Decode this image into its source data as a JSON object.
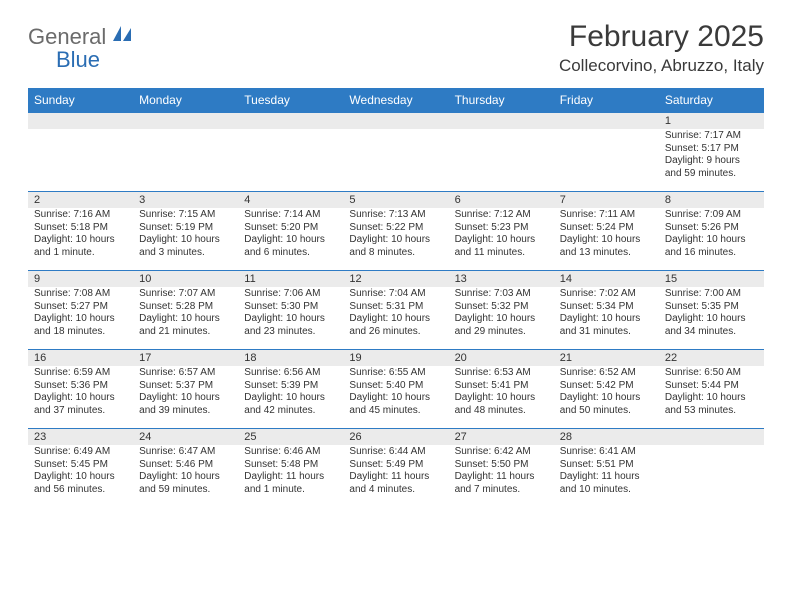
{
  "logo": {
    "word1": "General",
    "word2": "Blue"
  },
  "header": {
    "month_title": "February 2025",
    "location": "Collecorvino, Abruzzo, Italy"
  },
  "day_names": [
    "Sunday",
    "Monday",
    "Tuesday",
    "Wednesday",
    "Thursday",
    "Friday",
    "Saturday"
  ],
  "colors": {
    "header_bar": "#2e7bc4",
    "day_number_bg": "#ebebeb",
    "row_divider": "#2e7bc4",
    "text": "#333333",
    "title_text": "#3a3a3a",
    "logo_gray": "#6b6b6b",
    "logo_blue": "#2a6db3"
  },
  "weeks": [
    [
      null,
      null,
      null,
      null,
      null,
      null,
      {
        "n": "1",
        "sunrise": "Sunrise: 7:17 AM",
        "sunset": "Sunset: 5:17 PM",
        "daylight": "Daylight: 9 hours and 59 minutes."
      }
    ],
    [
      {
        "n": "2",
        "sunrise": "Sunrise: 7:16 AM",
        "sunset": "Sunset: 5:18 PM",
        "daylight": "Daylight: 10 hours and 1 minute."
      },
      {
        "n": "3",
        "sunrise": "Sunrise: 7:15 AM",
        "sunset": "Sunset: 5:19 PM",
        "daylight": "Daylight: 10 hours and 3 minutes."
      },
      {
        "n": "4",
        "sunrise": "Sunrise: 7:14 AM",
        "sunset": "Sunset: 5:20 PM",
        "daylight": "Daylight: 10 hours and 6 minutes."
      },
      {
        "n": "5",
        "sunrise": "Sunrise: 7:13 AM",
        "sunset": "Sunset: 5:22 PM",
        "daylight": "Daylight: 10 hours and 8 minutes."
      },
      {
        "n": "6",
        "sunrise": "Sunrise: 7:12 AM",
        "sunset": "Sunset: 5:23 PM",
        "daylight": "Daylight: 10 hours and 11 minutes."
      },
      {
        "n": "7",
        "sunrise": "Sunrise: 7:11 AM",
        "sunset": "Sunset: 5:24 PM",
        "daylight": "Daylight: 10 hours and 13 minutes."
      },
      {
        "n": "8",
        "sunrise": "Sunrise: 7:09 AM",
        "sunset": "Sunset: 5:26 PM",
        "daylight": "Daylight: 10 hours and 16 minutes."
      }
    ],
    [
      {
        "n": "9",
        "sunrise": "Sunrise: 7:08 AM",
        "sunset": "Sunset: 5:27 PM",
        "daylight": "Daylight: 10 hours and 18 minutes."
      },
      {
        "n": "10",
        "sunrise": "Sunrise: 7:07 AM",
        "sunset": "Sunset: 5:28 PM",
        "daylight": "Daylight: 10 hours and 21 minutes."
      },
      {
        "n": "11",
        "sunrise": "Sunrise: 7:06 AM",
        "sunset": "Sunset: 5:30 PM",
        "daylight": "Daylight: 10 hours and 23 minutes."
      },
      {
        "n": "12",
        "sunrise": "Sunrise: 7:04 AM",
        "sunset": "Sunset: 5:31 PM",
        "daylight": "Daylight: 10 hours and 26 minutes."
      },
      {
        "n": "13",
        "sunrise": "Sunrise: 7:03 AM",
        "sunset": "Sunset: 5:32 PM",
        "daylight": "Daylight: 10 hours and 29 minutes."
      },
      {
        "n": "14",
        "sunrise": "Sunrise: 7:02 AM",
        "sunset": "Sunset: 5:34 PM",
        "daylight": "Daylight: 10 hours and 31 minutes."
      },
      {
        "n": "15",
        "sunrise": "Sunrise: 7:00 AM",
        "sunset": "Sunset: 5:35 PM",
        "daylight": "Daylight: 10 hours and 34 minutes."
      }
    ],
    [
      {
        "n": "16",
        "sunrise": "Sunrise: 6:59 AM",
        "sunset": "Sunset: 5:36 PM",
        "daylight": "Daylight: 10 hours and 37 minutes."
      },
      {
        "n": "17",
        "sunrise": "Sunrise: 6:57 AM",
        "sunset": "Sunset: 5:37 PM",
        "daylight": "Daylight: 10 hours and 39 minutes."
      },
      {
        "n": "18",
        "sunrise": "Sunrise: 6:56 AM",
        "sunset": "Sunset: 5:39 PM",
        "daylight": "Daylight: 10 hours and 42 minutes."
      },
      {
        "n": "19",
        "sunrise": "Sunrise: 6:55 AM",
        "sunset": "Sunset: 5:40 PM",
        "daylight": "Daylight: 10 hours and 45 minutes."
      },
      {
        "n": "20",
        "sunrise": "Sunrise: 6:53 AM",
        "sunset": "Sunset: 5:41 PM",
        "daylight": "Daylight: 10 hours and 48 minutes."
      },
      {
        "n": "21",
        "sunrise": "Sunrise: 6:52 AM",
        "sunset": "Sunset: 5:42 PM",
        "daylight": "Daylight: 10 hours and 50 minutes."
      },
      {
        "n": "22",
        "sunrise": "Sunrise: 6:50 AM",
        "sunset": "Sunset: 5:44 PM",
        "daylight": "Daylight: 10 hours and 53 minutes."
      }
    ],
    [
      {
        "n": "23",
        "sunrise": "Sunrise: 6:49 AM",
        "sunset": "Sunset: 5:45 PM",
        "daylight": "Daylight: 10 hours and 56 minutes."
      },
      {
        "n": "24",
        "sunrise": "Sunrise: 6:47 AM",
        "sunset": "Sunset: 5:46 PM",
        "daylight": "Daylight: 10 hours and 59 minutes."
      },
      {
        "n": "25",
        "sunrise": "Sunrise: 6:46 AM",
        "sunset": "Sunset: 5:48 PM",
        "daylight": "Daylight: 11 hours and 1 minute."
      },
      {
        "n": "26",
        "sunrise": "Sunrise: 6:44 AM",
        "sunset": "Sunset: 5:49 PM",
        "daylight": "Daylight: 11 hours and 4 minutes."
      },
      {
        "n": "27",
        "sunrise": "Sunrise: 6:42 AM",
        "sunset": "Sunset: 5:50 PM",
        "daylight": "Daylight: 11 hours and 7 minutes."
      },
      {
        "n": "28",
        "sunrise": "Sunrise: 6:41 AM",
        "sunset": "Sunset: 5:51 PM",
        "daylight": "Daylight: 11 hours and 10 minutes."
      },
      null
    ]
  ]
}
